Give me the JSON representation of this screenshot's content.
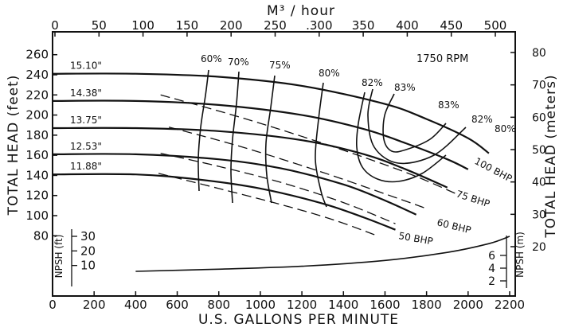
{
  "chart_data": {
    "type": "line",
    "annotation": "1750 RPM",
    "x_bottom": {
      "label": "U.S. GALLONS PER MINUTE",
      "range": [
        0,
        2200
      ],
      "ticks": [
        0,
        200,
        400,
        600,
        800,
        1000,
        1200,
        1400,
        1600,
        1800,
        2000,
        2200
      ]
    },
    "x_top": {
      "label": "M³ / hour",
      "ticks": [
        0,
        50,
        100,
        150,
        200,
        250,
        300,
        350,
        400,
        450,
        500
      ],
      "tick_labels": [
        "0",
        "50",
        "100",
        "150",
        "200",
        "250",
        ".300",
        "350",
        "400",
        "450",
        "500"
      ]
    },
    "y_left": {
      "label": "TOTAL HEAD (feet)",
      "ticks": [
        80,
        100,
        120,
        140,
        160,
        180,
        200,
        220,
        240,
        260
      ]
    },
    "y_right": {
      "label": "TOTAL HEAD (meters)",
      "ticks": [
        20,
        30,
        40,
        50,
        60,
        70,
        80
      ]
    },
    "npsh_left": {
      "label": "NPSH (ft)",
      "tick_labels": [
        "30",
        "20",
        "10"
      ]
    },
    "npsh_right": {
      "label": "NPSH (m)",
      "tick_labels": [
        "6",
        "4",
        "2"
      ]
    },
    "head_curves": [
      {
        "name": "15.10\"",
        "points": [
          [
            0,
            241
          ],
          [
            400,
            241
          ],
          [
            800,
            238
          ],
          [
            1200,
            229
          ],
          [
            1600,
            211
          ],
          [
            1800,
            196
          ],
          [
            2000,
            177
          ],
          [
            2100,
            162
          ]
        ]
      },
      {
        "name": "14.38\"",
        "points": [
          [
            0,
            214
          ],
          [
            400,
            214
          ],
          [
            800,
            210
          ],
          [
            1200,
            200
          ],
          [
            1500,
            186
          ],
          [
            1700,
            172
          ],
          [
            1900,
            156
          ],
          [
            2000,
            146
          ]
        ]
      },
      {
        "name": "13.75\"",
        "points": [
          [
            0,
            187
          ],
          [
            400,
            187
          ],
          [
            800,
            184
          ],
          [
            1200,
            175
          ],
          [
            1500,
            161
          ],
          [
            1700,
            146
          ],
          [
            1900,
            128
          ]
        ]
      },
      {
        "name": "12.53\"",
        "points": [
          [
            0,
            161
          ],
          [
            400,
            161
          ],
          [
            800,
            156
          ],
          [
            1100,
            147
          ],
          [
            1400,
            131
          ],
          [
            1600,
            115
          ],
          [
            1750,
            101
          ]
        ]
      },
      {
        "name": "11.88\"",
        "points": [
          [
            0,
            141
          ],
          [
            400,
            141
          ],
          [
            700,
            136
          ],
          [
            1000,
            127
          ],
          [
            1300,
            112
          ],
          [
            1500,
            98
          ],
          [
            1650,
            86
          ]
        ]
      }
    ],
    "efficiency_labels": [
      "60%",
      "70%",
      "75%",
      "80%",
      "82%",
      "83%",
      "83%",
      "82%",
      "80%"
    ],
    "bhp_lines": [
      {
        "name": "100 BHP",
        "points": [
          [
            520,
            220
          ],
          [
            900,
            198
          ],
          [
            1300,
            172
          ],
          [
            1700,
            143
          ],
          [
            1950,
            121
          ]
        ]
      },
      {
        "name": "75 BHP",
        "points": [
          [
            560,
            188
          ],
          [
            900,
            169
          ],
          [
            1300,
            143
          ],
          [
            1650,
            118
          ],
          [
            1800,
            107
          ]
        ]
      },
      {
        "name": "60 BHP",
        "points": [
          [
            520,
            162
          ],
          [
            800,
            149
          ],
          [
            1100,
            133
          ],
          [
            1400,
            113
          ],
          [
            1650,
            92
          ]
        ]
      },
      {
        "name": "50 BHP",
        "points": [
          [
            510,
            142
          ],
          [
            800,
            127
          ],
          [
            1100,
            111
          ],
          [
            1350,
            96
          ],
          [
            1550,
            81
          ]
        ]
      }
    ],
    "npsh_curve_ft": [
      [
        400,
        6
      ],
      [
        800,
        7.5
      ],
      [
        1200,
        9.5
      ],
      [
        1600,
        13.5
      ],
      [
        1900,
        19
      ],
      [
        2100,
        25
      ],
      [
        2200,
        30
      ]
    ]
  }
}
